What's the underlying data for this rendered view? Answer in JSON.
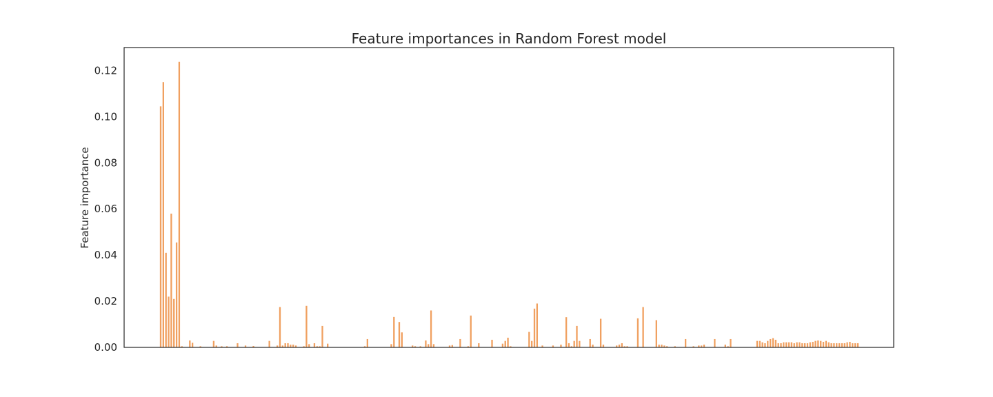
{
  "chart_data": {
    "type": "bar",
    "title": "Feature importances in Random Forest model",
    "xlabel": "",
    "ylabel": "Feature importance",
    "ylim": [
      0,
      0.13
    ],
    "yticks": [
      "0.00",
      "0.02",
      "0.04",
      "0.06",
      "0.08",
      "0.10",
      "0.12"
    ],
    "grid": false,
    "legend": "none",
    "bar_color": "#f0a060",
    "values": [
      0.1045,
      0.115,
      0.041,
      0.022,
      0.058,
      0.021,
      0.0455,
      0.1238,
      0.0005,
      0,
      0,
      0.003,
      0.002,
      0,
      0,
      0.0005,
      0,
      0,
      0,
      0,
      0.0028,
      0.0008,
      0,
      0.0005,
      0,
      0.0005,
      0,
      0,
      0,
      0.0018,
      0,
      0,
      0.0008,
      0,
      0,
      0.0006,
      0,
      0,
      0,
      0,
      0,
      0.0028,
      0,
      0,
      0.0008,
      0.0175,
      0.0008,
      0.0018,
      0.0018,
      0.0012,
      0.0012,
      0.0008,
      0,
      0,
      0.0005,
      0.018,
      0.0014,
      0,
      0.0018,
      0.0005,
      0.0005,
      0.0093,
      0,
      0.0016,
      0,
      0,
      0,
      0,
      0,
      0,
      0,
      0,
      0,
      0,
      0,
      0,
      0,
      0.0005,
      0.0036,
      0,
      0,
      0,
      0,
      0,
      0,
      0,
      0,
      0.0014,
      0.0132,
      0,
      0.011,
      0.0065,
      0,
      0,
      0,
      0.0008,
      0.0005,
      0,
      0.0005,
      0,
      0.003,
      0.0014,
      0.016,
      0.0014,
      0,
      0,
      0,
      0,
      0,
      0.0008,
      0.001,
      0,
      0,
      0.0036,
      0,
      0,
      0.0005,
      0.0138,
      0,
      0,
      0.0018,
      0,
      0,
      0,
      0,
      0.0033,
      0,
      0,
      0,
      0.0016,
      0.0028,
      0.0042,
      0.0005,
      0,
      0,
      0,
      0,
      0,
      0,
      0.0067,
      0.0028,
      0.0168,
      0.019,
      0,
      0.0008,
      0,
      0,
      0,
      0.0008,
      0,
      0,
      0.0012,
      0,
      0.0131,
      0.0018,
      0.0005,
      0.0028,
      0.0093,
      0.0028,
      0,
      0,
      0,
      0.0036,
      0.0012,
      0,
      0,
      0.0124,
      0.0012,
      0,
      0,
      0,
      0,
      0.0008,
      0.0012,
      0.0018,
      0.0005,
      0.0005,
      0,
      0,
      0,
      0.0126,
      0,
      0.0175,
      0,
      0,
      0,
      0,
      0.0118,
      0.0012,
      0.0012,
      0.0008,
      0.0005,
      0,
      0,
      0.0005,
      0,
      0,
      0,
      0.0036,
      0,
      0,
      0.0005,
      0,
      0.0008,
      0.0008,
      0.0012,
      0,
      0,
      0,
      0.0036,
      0,
      0,
      0,
      0.0012,
      0.0005,
      0.0036,
      0,
      0,
      0,
      0,
      0,
      0,
      0,
      0,
      0,
      0.0028,
      0.0028,
      0.0022,
      0.0018,
      0.0028,
      0.0036,
      0.004,
      0.0033,
      0.0018,
      0.0018,
      0.0022,
      0.0022,
      0.0022,
      0.0022,
      0.0018,
      0.0022,
      0.0022,
      0.0018,
      0.0018,
      0.0018,
      0.0022,
      0.0024,
      0.0028,
      0.003,
      0.0028,
      0.0024,
      0.0028,
      0.0022,
      0.0018,
      0.0018,
      0.0018,
      0.0018,
      0.0018,
      0.0018,
      0.0022,
      0.0024,
      0.0018,
      0.0018,
      0.0018
    ]
  }
}
